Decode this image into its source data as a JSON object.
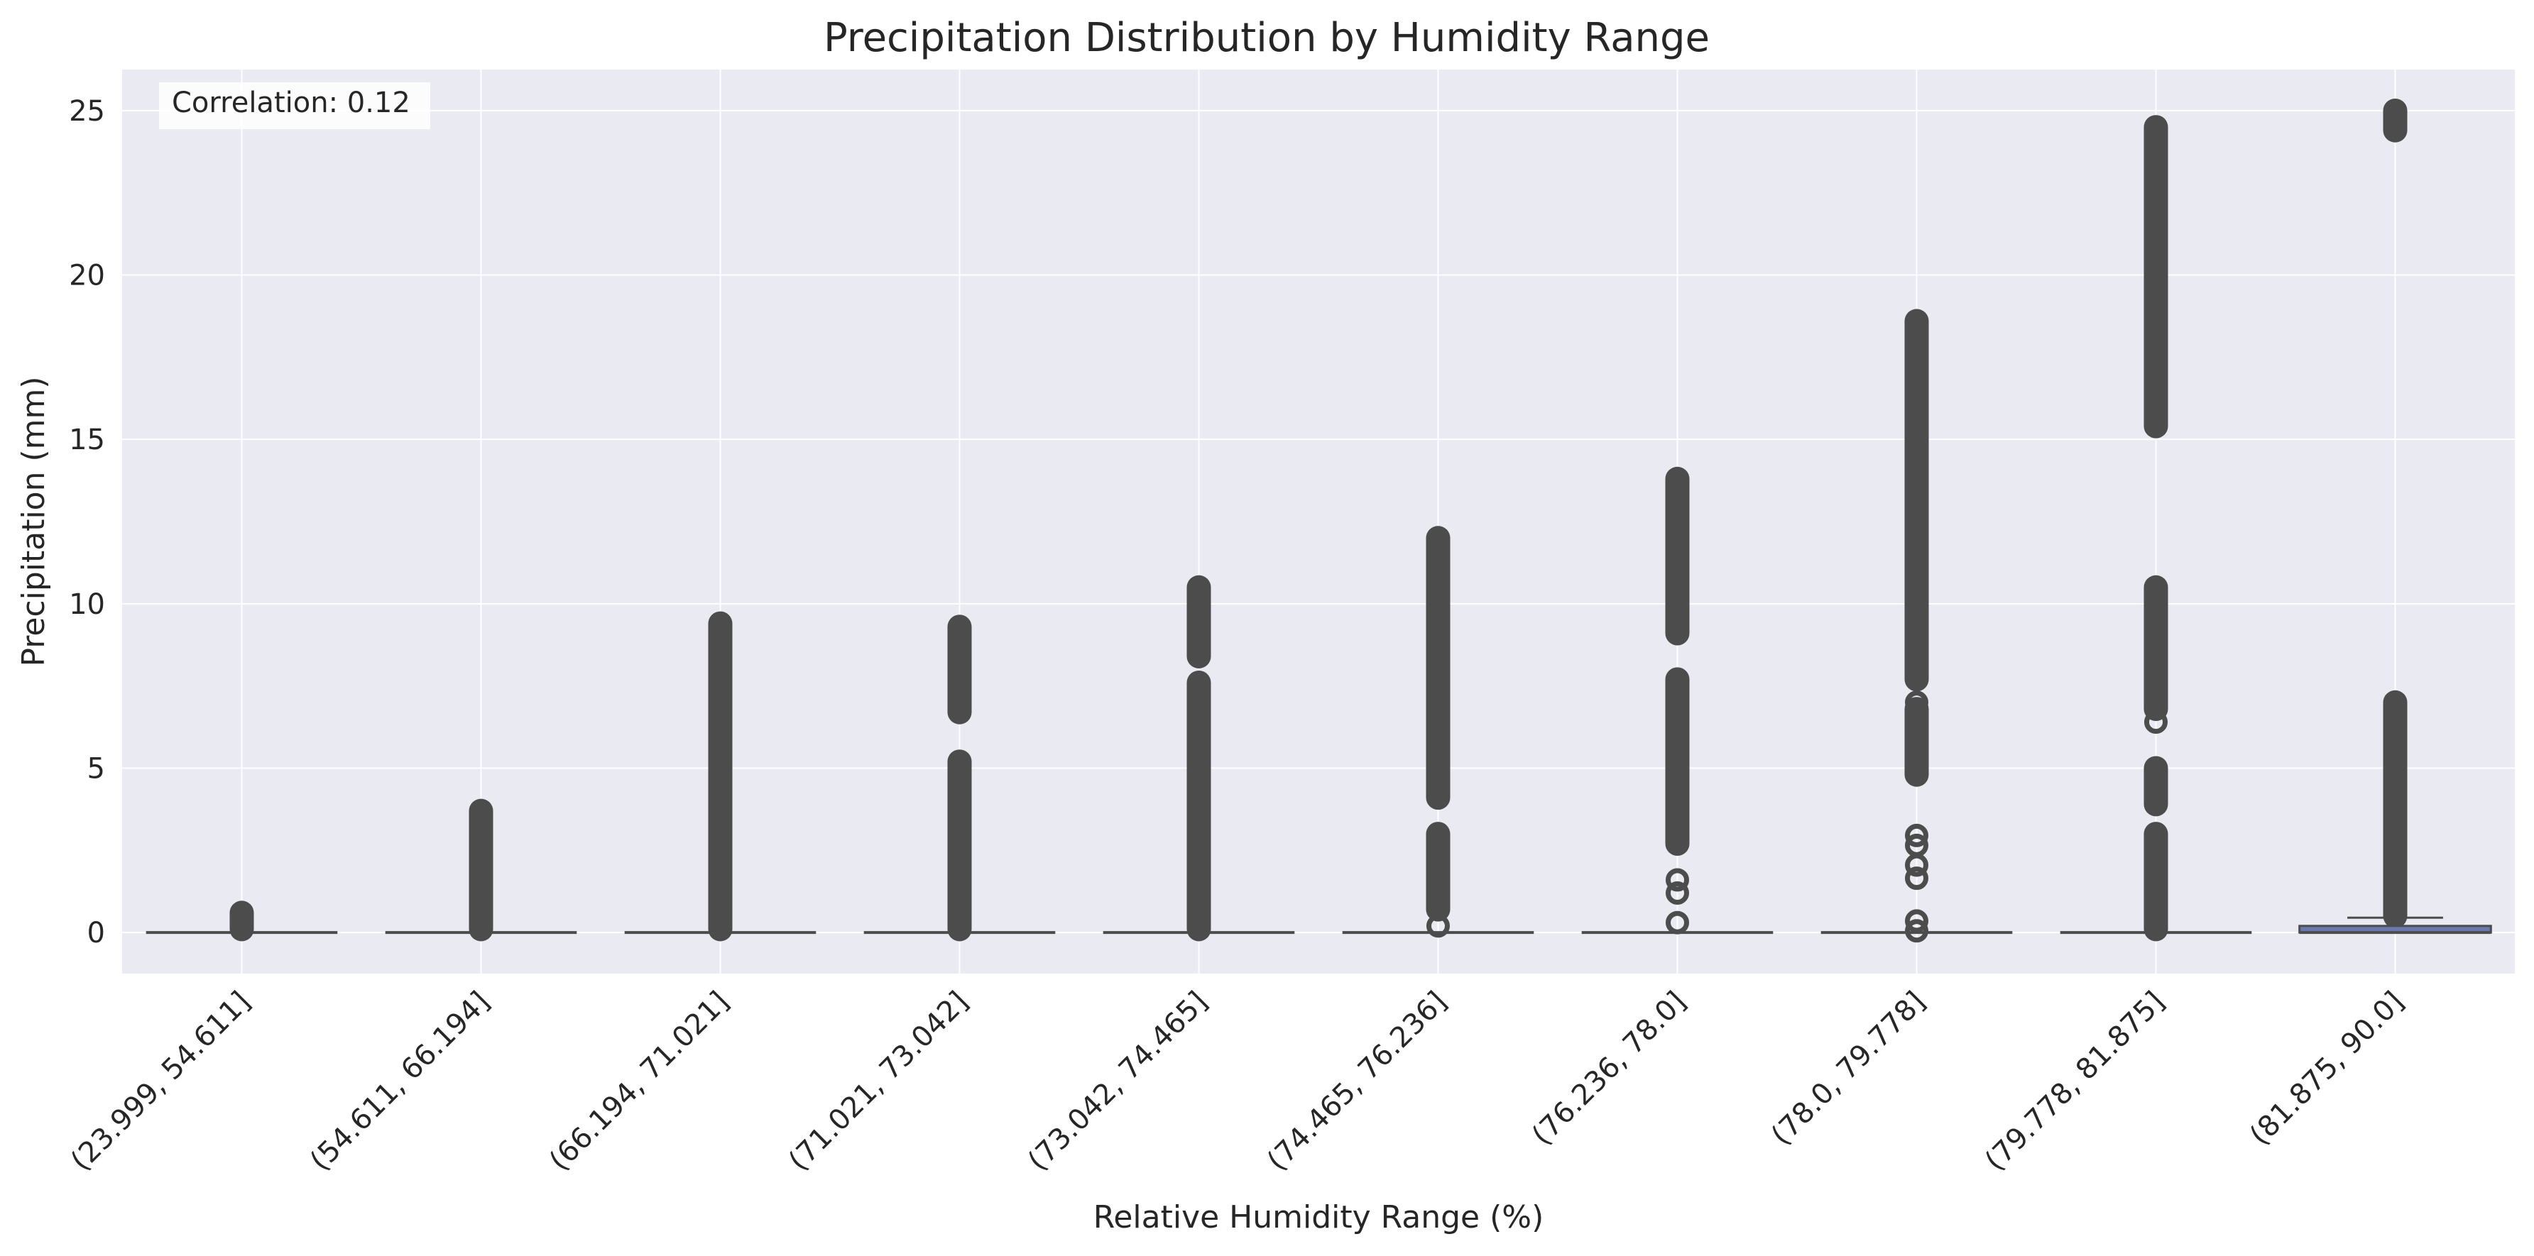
{
  "chart_data": {
    "type": "box",
    "title": "Precipitation Distribution by Humidity Range",
    "xlabel": "Relative Humidity Range (%)",
    "ylabel": "Precipitation (mm)",
    "ylim": [
      -1.25,
      26.25
    ],
    "yticks": [
      0,
      5,
      10,
      15,
      20,
      25
    ],
    "grid": true,
    "annotation": "Correlation: 0.12",
    "colors": {
      "plot_bg": "#eaeaf2",
      "grid": "#ffffff",
      "outlier": "#4c4c4c",
      "median": "#4c4c4c",
      "box_fill": "#6a78ae"
    },
    "categories": [
      "(23.999, 54.611]",
      "(54.611, 66.194]",
      "(66.194, 71.021]",
      "(71.021, 73.042]",
      "(73.042, 74.465]",
      "(74.465, 76.236]",
      "(76.236, 78.0]",
      "(78.0, 79.778]",
      "(79.778, 81.875]",
      "(81.875, 90.0]"
    ],
    "boxes": [
      {
        "q1": 0,
        "median": 0,
        "q3": 0,
        "whisker_low": 0,
        "whisker_high": 0,
        "outlier_ranges": [
          [
            0.1,
            0.6
          ]
        ],
        "outlier_points": []
      },
      {
        "q1": 0,
        "median": 0,
        "q3": 0,
        "whisker_low": 0,
        "whisker_high": 0,
        "outlier_ranges": [
          [
            0.1,
            3.7
          ]
        ],
        "outlier_points": []
      },
      {
        "q1": 0,
        "median": 0,
        "q3": 0,
        "whisker_low": 0,
        "whisker_high": 0,
        "outlier_ranges": [
          [
            0.1,
            9.4
          ]
        ],
        "outlier_points": []
      },
      {
        "q1": 0,
        "median": 0,
        "q3": 0,
        "whisker_low": 0,
        "whisker_high": 0,
        "outlier_ranges": [
          [
            0.1,
            5.2
          ],
          [
            6.7,
            9.3
          ]
        ],
        "outlier_points": []
      },
      {
        "q1": 0,
        "median": 0,
        "q3": 0,
        "whisker_low": 0,
        "whisker_high": 0,
        "outlier_ranges": [
          [
            0.1,
            7.6
          ],
          [
            8.4,
            10.5
          ]
        ],
        "outlier_points": []
      },
      {
        "q1": 0,
        "median": 0,
        "q3": 0,
        "whisker_low": 0,
        "whisker_high": 0,
        "outlier_ranges": [
          [
            0.7,
            3.0
          ],
          [
            4.1,
            12.0
          ]
        ],
        "outlier_points": [
          0.2
        ]
      },
      {
        "q1": 0,
        "median": 0,
        "q3": 0,
        "whisker_low": 0,
        "whisker_high": 0,
        "outlier_ranges": [
          [
            2.7,
            7.7
          ],
          [
            9.1,
            13.8
          ]
        ],
        "outlier_points": [
          0.3,
          1.2,
          1.6
        ]
      },
      {
        "q1": 0,
        "median": 0,
        "q3": 0,
        "whisker_low": 0,
        "whisker_high": 0,
        "outlier_ranges": [
          [
            4.8,
            6.8
          ],
          [
            7.7,
            18.6
          ]
        ],
        "outlier_points": [
          0.05,
          0.35,
          1.65,
          2.05,
          2.65,
          2.95,
          7.0
        ]
      },
      {
        "q1": 0,
        "median": 0,
        "q3": 0,
        "whisker_low": 0,
        "whisker_high": 0,
        "outlier_ranges": [
          [
            0.1,
            3.0
          ],
          [
            3.9,
            5.0
          ],
          [
            6.8,
            10.5
          ],
          [
            15.4,
            24.5
          ]
        ],
        "outlier_points": [
          6.4
        ]
      },
      {
        "q1": 0,
        "median": 0,
        "q3": 0.2,
        "whisker_low": 0,
        "whisker_high": 0.45,
        "outlier_ranges": [
          [
            0.5,
            7.0
          ],
          [
            24.4,
            25.0
          ]
        ],
        "outlier_points": []
      }
    ]
  }
}
